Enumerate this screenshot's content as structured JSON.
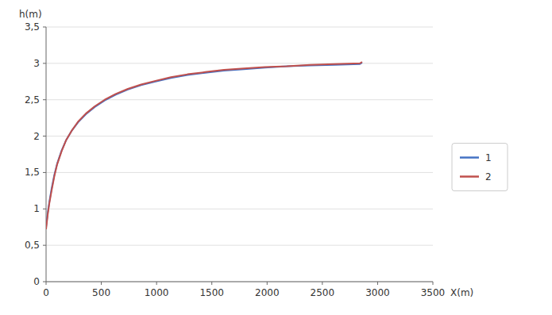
{
  "chart_data": {
    "type": "line",
    "xlabel": "X(m)",
    "ylabel": "h(m)",
    "x": [
      0,
      15,
      30,
      50,
      75,
      100,
      140,
      180,
      230,
      290,
      360,
      440,
      530,
      630,
      740,
      860,
      990,
      1130,
      1280,
      1440,
      1610,
      1790,
      1980,
      2180,
      2390,
      2610,
      2840,
      2860
    ],
    "series": [
      {
        "name": "1",
        "color": "#4472C4",
        "values": [
          0.75,
          0.95,
          1.1,
          1.28,
          1.47,
          1.62,
          1.8,
          1.94,
          2.07,
          2.19,
          2.3,
          2.4,
          2.49,
          2.57,
          2.64,
          2.7,
          2.75,
          2.8,
          2.84,
          2.87,
          2.9,
          2.92,
          2.94,
          2.96,
          2.97,
          2.98,
          2.99,
          3.01
        ]
      },
      {
        "name": "2",
        "color": "#C0504D",
        "values": [
          0.72,
          0.92,
          1.08,
          1.25,
          1.45,
          1.61,
          1.79,
          1.94,
          2.07,
          2.2,
          2.31,
          2.41,
          2.5,
          2.58,
          2.65,
          2.71,
          2.76,
          2.81,
          2.85,
          2.88,
          2.91,
          2.93,
          2.95,
          2.96,
          2.98,
          2.99,
          3.0,
          3.02
        ]
      }
    ],
    "xlim": [
      0,
      3500
    ],
    "ylim": [
      0,
      3.5
    ],
    "xticks": [
      0,
      500,
      1000,
      1500,
      2000,
      2500,
      3000,
      3500
    ],
    "yticks": [
      0,
      {
        "value": 0.5,
        "label": "0,5"
      },
      1,
      {
        "value": 1.5,
        "label": "1,5"
      },
      2,
      {
        "value": 2.5,
        "label": "2,5"
      },
      3,
      {
        "value": 3.5,
        "label": "3,5"
      }
    ],
    "grid": true,
    "legend": "right"
  }
}
